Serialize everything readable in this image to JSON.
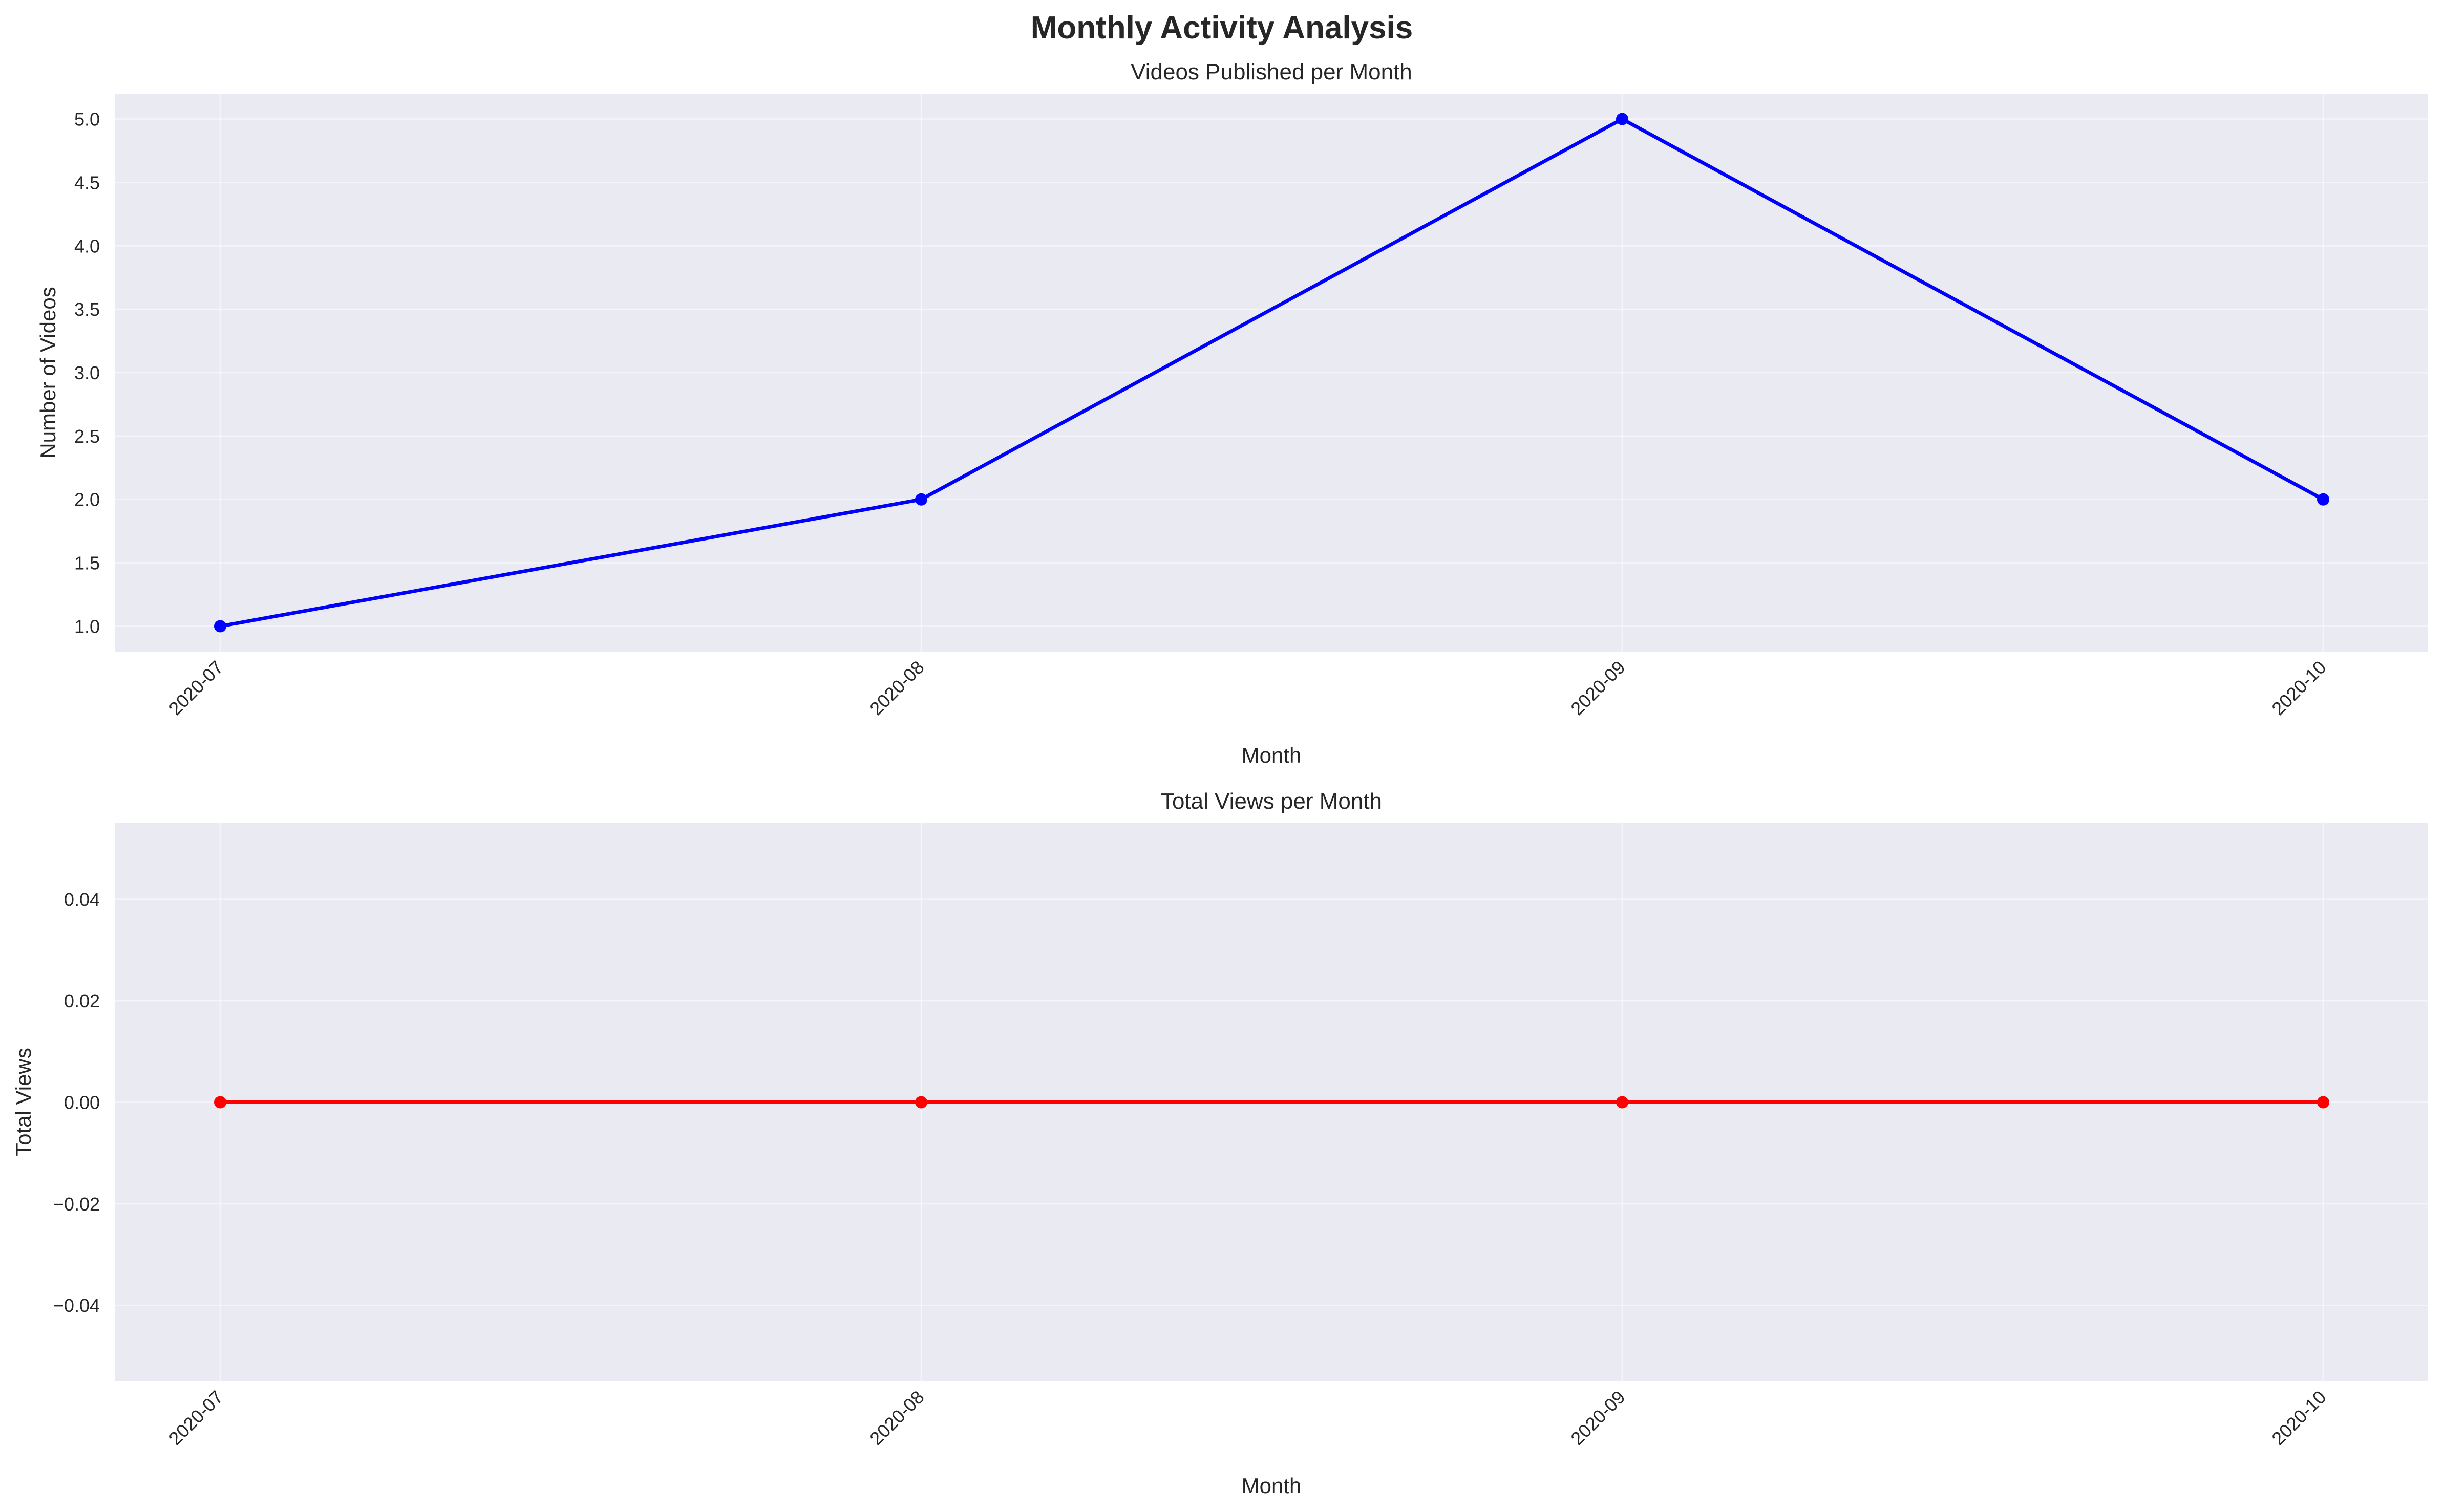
{
  "chart_data": {
    "title": "Monthly Activity Analysis",
    "type": "line",
    "panels": [
      {
        "title": "Videos Published per Month",
        "type": "line",
        "xlabel": "Month",
        "ylabel": "Number of Videos",
        "categories": [
          "2020-07",
          "2020-08",
          "2020-09",
          "2020-10"
        ],
        "series": [
          {
            "values": [
              1,
              2,
              5,
              2
            ],
            "color": "#0000ff"
          }
        ],
        "ylim": [
          0.8,
          5.2
        ],
        "yticks": [
          1.0,
          1.5,
          2.0,
          2.5,
          3.0,
          3.5,
          4.0,
          4.5,
          5.0
        ],
        "ytick_labels": [
          "1.0",
          "1.5",
          "2.0",
          "2.5",
          "3.0",
          "3.5",
          "4.0",
          "4.5",
          "5.0"
        ],
        "grid": true
      },
      {
        "title": "Total Views per Month",
        "type": "line",
        "xlabel": "Month",
        "ylabel": "Total Views",
        "categories": [
          "2020-07",
          "2020-08",
          "2020-09",
          "2020-10"
        ],
        "series": [
          {
            "values": [
              0,
              0,
              0,
              0
            ],
            "color": "#ff0000"
          }
        ],
        "ylim": [
          -0.055,
          0.055
        ],
        "yticks": [
          -0.04,
          -0.02,
          0.0,
          0.02,
          0.04
        ],
        "ytick_labels": [
          "−0.04",
          "−0.02",
          "0.00",
          "0.02",
          "0.04"
        ],
        "grid": true
      }
    ]
  }
}
